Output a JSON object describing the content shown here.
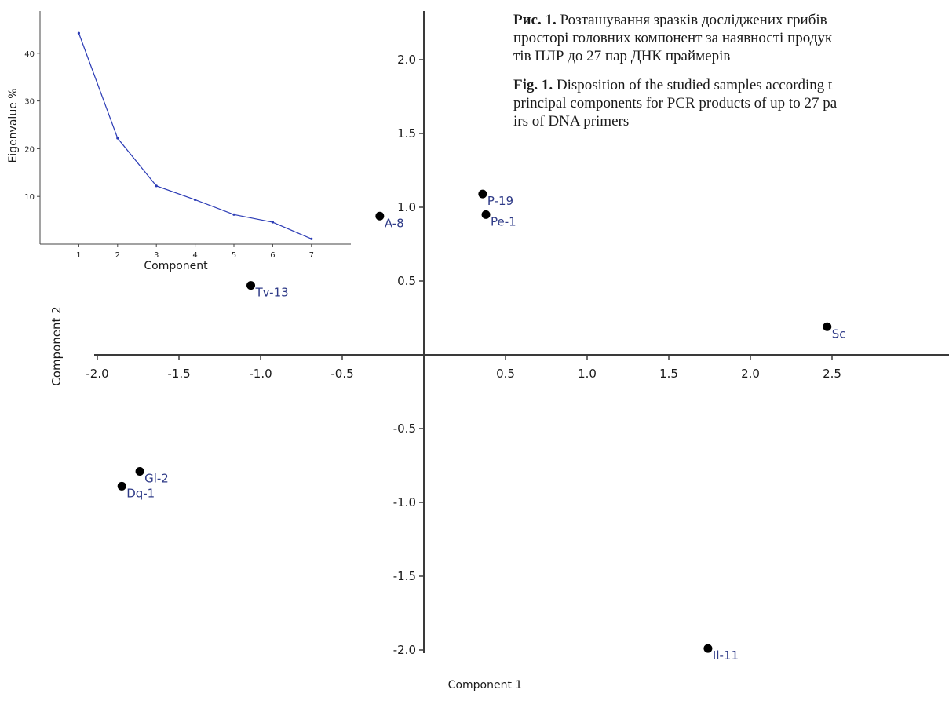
{
  "caption": {
    "ua_label": "Рис. 1.",
    "ua_lines": [
      "Розташування зразків досліджених грибів",
      "просторі головних компонент за наявності продук",
      "тів ПЛР до 27 пар ДНК праймерів"
    ],
    "en_label": "Fig. 1.",
    "en_lines": [
      "Disposition of the studied samples according t",
      "principal components for PCR products of up to 27 pa",
      "irs of DNA primers"
    ]
  },
  "chart_data": [
    {
      "type": "scatter",
      "xlabel": "Component 1",
      "ylabel": "Component 2",
      "xlim": [
        -2.0,
        3.2
      ],
      "ylim": [
        -2.0,
        2.35
      ],
      "xticks": [
        -2.0,
        -1.5,
        -1.0,
        -0.5,
        0.5,
        1.0,
        1.5,
        2.0,
        2.5
      ],
      "yticks": [
        2.0,
        1.5,
        1.0,
        0.5,
        -0.5,
        -1.0,
        -1.5,
        -2.0
      ],
      "xtick_labels": [
        "-2.0",
        "-1.5",
        "-1.0",
        "-0.5",
        "0.5",
        "1.0",
        "1.5",
        "2.0",
        "2.5"
      ],
      "ytick_labels": [
        "2.0",
        "1.5",
        "1.0",
        "0.5",
        "-0.5",
        "-1.0",
        "-1.5",
        "-2.0"
      ],
      "point_color": "#000000",
      "label_color": "#2e3a87",
      "points": [
        {
          "label": "A-8",
          "x": -0.27,
          "y": 0.94
        },
        {
          "label": "P-19",
          "x": 0.36,
          "y": 1.09
        },
        {
          "label": "Pe-1",
          "x": 0.38,
          "y": 0.95
        },
        {
          "label": "Tv-13",
          "x": -1.06,
          "y": 0.47
        },
        {
          "label": "Sc",
          "x": 2.47,
          "y": 0.19
        },
        {
          "label": "Gl-2",
          "x": -1.74,
          "y": -0.79
        },
        {
          "label": "Dq-1",
          "x": -1.85,
          "y": -0.89
        },
        {
          "label": "Il-11",
          "x": 1.74,
          "y": -1.99
        }
      ]
    },
    {
      "type": "line",
      "xlabel": "Component",
      "ylabel": "Eigenvalue %",
      "x": [
        1,
        2,
        3,
        4,
        5,
        6,
        7
      ],
      "values": [
        44.2,
        22.2,
        12.2,
        9.3,
        6.2,
        4.6,
        1.1
      ],
      "xlim": [
        0,
        8
      ],
      "ylim": [
        0,
        47
      ],
      "xticks": [
        1,
        2,
        3,
        4,
        5,
        6,
        7
      ],
      "yticks": [
        10,
        20,
        30,
        40
      ],
      "line_color": "#2b3bb5"
    }
  ]
}
